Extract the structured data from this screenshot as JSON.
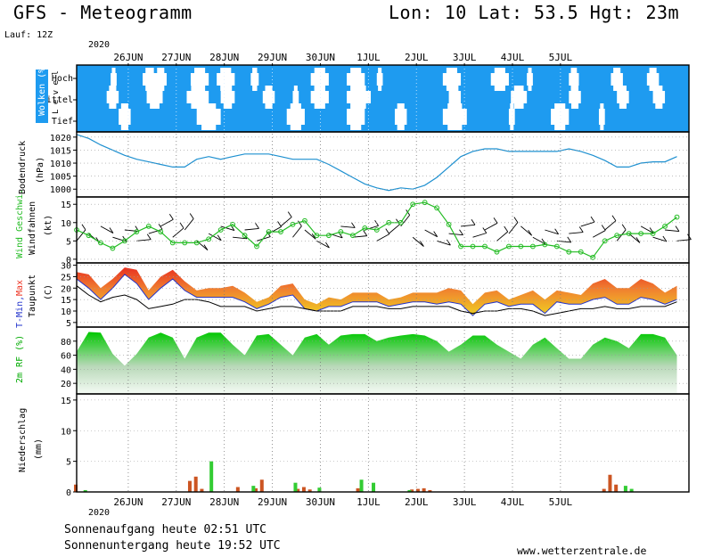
{
  "header": {
    "title": "GFS - Meteogramm",
    "location": "Lon: 10 Lat: 53.5 Hgt: 23m",
    "run": "Lauf: 12Z",
    "year": "2020"
  },
  "footer": {
    "sunrise": "Sonnenaufgang heute 02:51 UTC",
    "sunset": "Sonnenuntergang heute 19:52 UTC",
    "site": "www.wetterzentrale.de"
  },
  "colors": {
    "cloud_bg": "#1e9bf0",
    "pressure_line": "#1e90d0",
    "wind_line": "#22bb22",
    "humidity_top": "#00cc00",
    "precip_conv": "#33cc33",
    "precip_large": "#cc5522",
    "tmax": "#ee3322",
    "tmin": "#2233cc"
  },
  "chart_data": [
    {
      "type": "area",
      "title": "Wolken (%)",
      "ylabel": "Wolken (%)",
      "ylabel2": "L e v e l",
      "levels": [
        "Hoch",
        "Mittel",
        "Tief"
      ],
      "x_days": [
        "26JUN",
        "27JUN",
        "28JUN",
        "29JUN",
        "30JUN",
        "1JUL",
        "2JUL",
        "3JUL",
        "4JUL",
        "5JUL"
      ],
      "clear_gaps_hours": {
        "Hoch": [
          [
            17,
            20
          ],
          [
            33,
            40
          ],
          [
            39,
            45
          ],
          [
            57,
            66
          ],
          [
            70,
            79
          ],
          [
            87,
            91
          ],
          [
            117,
            126
          ],
          [
            135,
            144
          ],
          [
            150,
            153
          ],
          [
            183,
            192
          ],
          [
            207,
            216
          ],
          [
            225,
            228
          ],
          [
            246,
            251
          ],
          [
            267,
            273
          ],
          [
            285,
            291
          ]
        ],
        "Mittel": [
          [
            15,
            21
          ],
          [
            35,
            43
          ],
          [
            55,
            66
          ],
          [
            72,
            79
          ],
          [
            93,
            99
          ],
          [
            108,
            111
          ],
          [
            117,
            126
          ],
          [
            135,
            147
          ],
          [
            186,
            192
          ],
          [
            217,
            225
          ],
          [
            246,
            252
          ],
          [
            270,
            276
          ],
          [
            288,
            294
          ]
        ],
        "Tief": [
          [
            21,
            27
          ],
          [
            60,
            72
          ],
          [
            105,
            114
          ],
          [
            135,
            144
          ],
          [
            159,
            165
          ],
          [
            183,
            195
          ],
          [
            216,
            219
          ],
          [
            237,
            246
          ],
          [
            261,
            264
          ]
        ]
      }
    },
    {
      "type": "line",
      "title": "Bodendruck",
      "ylabel": "Bodendruck (hPa)",
      "yticks": [
        1000,
        1005,
        1010,
        1015,
        1020
      ],
      "ylim": [
        997,
        1022
      ],
      "x_hours": [
        0,
        6,
        12,
        18,
        24,
        30,
        36,
        42,
        48,
        54,
        60,
        66,
        72,
        78,
        84,
        90,
        96,
        102,
        108,
        114,
        120,
        126,
        132,
        138,
        144,
        150,
        156,
        162,
        168,
        174,
        180,
        186,
        192,
        198,
        204,
        210,
        216,
        222,
        228,
        234,
        240,
        246,
        252,
        258,
        264,
        270,
        276,
        282,
        288,
        294,
        300
      ],
      "values": [
        1021,
        1019.5,
        1017,
        1015,
        1013,
        1011.5,
        1010.5,
        1009.5,
        1008.5,
        1008.5,
        1011.5,
        1012.5,
        1011.5,
        1012.5,
        1013.5,
        1013.5,
        1013.5,
        1012.5,
        1011.5,
        1011.5,
        1011.5,
        1009.5,
        1007,
        1004.5,
        1002,
        1000.5,
        999.5,
        1000.5,
        1000,
        1001.5,
        1004.5,
        1008.5,
        1012.5,
        1014.5,
        1015.5,
        1015.5,
        1014.5,
        1014.5,
        1014.5,
        1014.5,
        1014.5,
        1015.5,
        1014.5,
        1013,
        1011,
        1008.5,
        1008.5,
        1010,
        1010.5,
        1010.5,
        1012.5
      ]
    },
    {
      "type": "line",
      "title": "Wind Geschwi.",
      "ylabel": "Wind Geschwi. Windfahnen (kt)",
      "yticks": [
        0,
        5,
        10,
        15
      ],
      "ylim": [
        -1,
        17
      ],
      "x_hours": [
        0,
        6,
        12,
        18,
        24,
        30,
        36,
        42,
        48,
        54,
        60,
        66,
        72,
        78,
        84,
        90,
        96,
        102,
        108,
        114,
        120,
        126,
        132,
        138,
        144,
        150,
        156,
        162,
        168,
        174,
        180,
        186,
        192,
        198,
        204,
        210,
        216,
        222,
        228,
        234,
        240,
        246,
        252,
        258,
        264,
        270,
        276,
        282,
        288,
        294,
        300
      ],
      "values": [
        8,
        6.5,
        4.5,
        3,
        5,
        7.5,
        9,
        7.5,
        4.5,
        4.5,
        4.5,
        5.5,
        8,
        9.5,
        6.5,
        3.5,
        7.5,
        7.5,
        9.5,
        10.5,
        6.5,
        6.5,
        7.5,
        6.5,
        8.5,
        8,
        10,
        10,
        15,
        15.5,
        14,
        9.5,
        3.5,
        3.5,
        3.5,
        2,
        3.5,
        3.5,
        3.5,
        4,
        3.5,
        2,
        2,
        0.5,
        5,
        6.5,
        7,
        7,
        7,
        9,
        11.5
      ]
    },
    {
      "type": "area",
      "title": "T-Min, Max Taupunkt",
      "ylabel": "T-Min, Max Taupunkt (C)",
      "yticks": [
        5,
        10,
        15,
        20,
        25,
        30
      ],
      "ylim": [
        3,
        31
      ],
      "x_hours": [
        0,
        6,
        12,
        18,
        24,
        30,
        36,
        42,
        48,
        54,
        60,
        66,
        72,
        78,
        84,
        90,
        96,
        102,
        108,
        114,
        120,
        126,
        132,
        138,
        144,
        150,
        156,
        162,
        168,
        174,
        180,
        186,
        192,
        198,
        204,
        210,
        216,
        222,
        228,
        234,
        240,
        246,
        252,
        258,
        264,
        270,
        276,
        282,
        288,
        294,
        300
      ],
      "tmax": [
        27,
        26,
        20,
        24,
        29,
        28,
        19,
        25,
        28,
        23,
        19,
        20,
        20,
        21,
        18,
        14,
        16,
        21,
        22,
        15,
        13,
        16,
        15,
        18,
        18,
        18,
        15,
        16,
        18,
        18,
        18,
        20,
        19,
        13,
        18,
        19,
        15,
        17,
        19,
        15,
        19,
        18,
        17,
        22,
        24,
        20,
        20,
        24,
        22,
        18,
        21
      ],
      "tmin": [
        24,
        20,
        15,
        20,
        26,
        22,
        15,
        20,
        24,
        19,
        16,
        16,
        16,
        16,
        14,
        11,
        13,
        16,
        17,
        11,
        10,
        12,
        12,
        14,
        14,
        14,
        12,
        13,
        14,
        14,
        13,
        14,
        13,
        8,
        13,
        14,
        12,
        13,
        13,
        9,
        14,
        13,
        13,
        15,
        16,
        13,
        13,
        16,
        15,
        13,
        15
      ],
      "dewpoint": [
        21,
        17,
        14,
        16,
        17,
        15,
        11,
        12,
        13,
        15,
        15,
        14,
        12,
        12,
        12,
        10,
        11,
        12,
        12,
        11,
        10,
        10,
        10,
        12,
        12,
        12,
        11,
        11,
        12,
        12,
        12,
        12,
        10,
        9,
        10,
        10,
        11,
        11,
        10,
        8,
        9,
        10,
        11,
        11,
        12,
        11,
        11,
        12,
        12,
        12,
        14
      ]
    },
    {
      "type": "area",
      "title": "2m RF (%)",
      "ylabel": "2m RF (%)",
      "yticks": [
        20,
        40,
        60,
        80
      ],
      "ylim": [
        5,
        100
      ],
      "x_hours": [
        0,
        6,
        12,
        18,
        24,
        30,
        36,
        42,
        48,
        54,
        60,
        66,
        72,
        78,
        84,
        90,
        96,
        102,
        108,
        114,
        120,
        126,
        132,
        138,
        144,
        150,
        156,
        162,
        168,
        174,
        180,
        186,
        192,
        198,
        204,
        210,
        216,
        222,
        228,
        234,
        240,
        246,
        252,
        258,
        264,
        270,
        276,
        282,
        288,
        294,
        300
      ],
      "values": [
        65,
        93,
        92,
        62,
        45,
        62,
        85,
        92,
        85,
        55,
        85,
        92,
        92,
        75,
        60,
        88,
        90,
        75,
        60,
        85,
        90,
        75,
        88,
        90,
        90,
        80,
        85,
        88,
        90,
        88,
        80,
        65,
        75,
        88,
        88,
        75,
        65,
        55,
        75,
        85,
        70,
        55,
        55,
        75,
        85,
        80,
        70,
        90,
        90,
        85,
        60
      ]
    },
    {
      "type": "bar",
      "title": "Niederschlag",
      "ylabel": "Niederschlag (mm)",
      "yticks": [
        0,
        5,
        10,
        15
      ],
      "ylim": [
        0,
        16
      ],
      "x_days": [
        "26JUN",
        "27JUN",
        "28JUN",
        "29JUN",
        "30JUN",
        "1JUL",
        "2JUL",
        "3JUL",
        "4JUL",
        "5JUL"
      ],
      "series": [
        {
          "name": "large-scale",
          "x_hours": [
            0,
            57,
            60,
            63,
            81,
            90,
            93,
            111,
            114,
            117,
            141,
            168,
            171,
            174,
            177,
            264,
            267,
            270
          ],
          "values": [
            1.2,
            1.8,
            2.5,
            0.5,
            0.8,
            0.6,
            2,
            0.5,
            0.8,
            0.4,
            0.6,
            0.4,
            0.5,
            0.6,
            0.3,
            0.5,
            2.8,
            1.2
          ]
        },
        {
          "name": "convective",
          "x_hours": [
            3,
            66,
            87,
            108,
            120,
            141,
            147,
            165,
            273,
            276
          ],
          "values": [
            0.3,
            5,
            1,
            1.5,
            0.7,
            2,
            1.5,
            0.3,
            1,
            0.5
          ]
        }
      ]
    }
  ]
}
